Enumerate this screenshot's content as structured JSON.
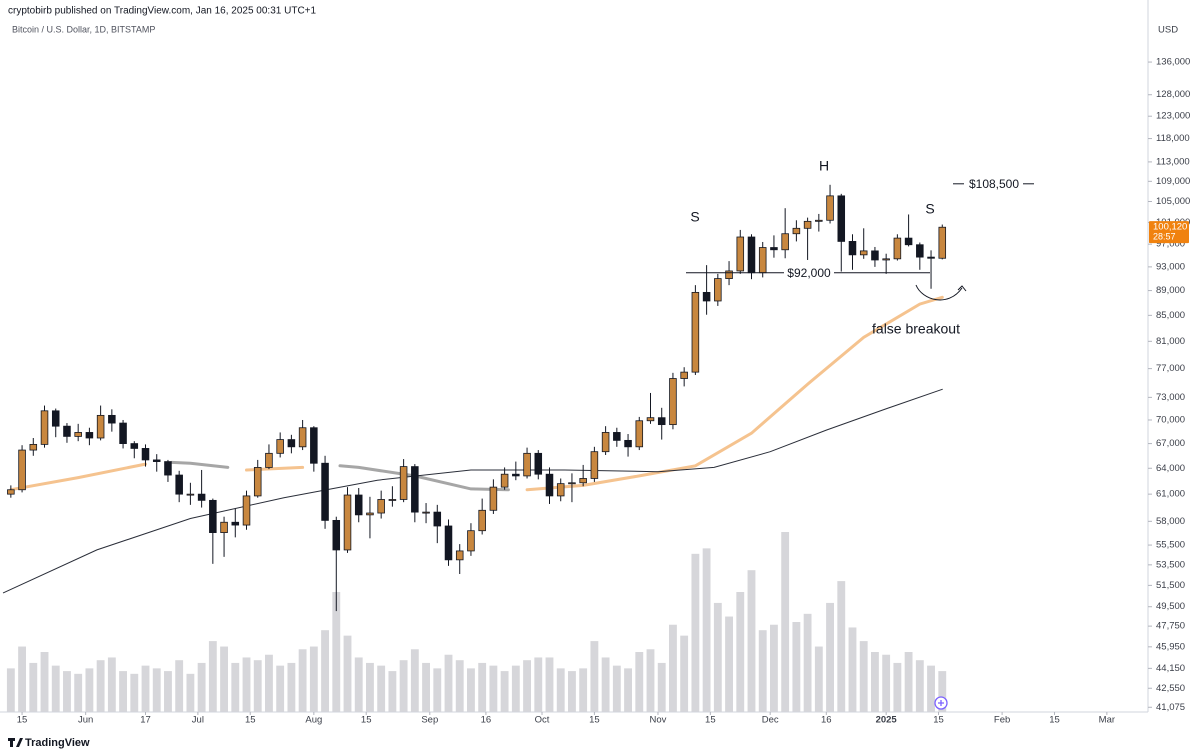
{
  "chart_data": {
    "type": "candlestick",
    "header": "cryptobirb published on TradingView.com, Jan 16, 2025 00:31 UTC+1",
    "title": "Bitcoin / U.S. Dollar, 1D, BITSTAMP",
    "currency": "USD",
    "brand": "TradingView",
    "log_scale": true,
    "grid": false,
    "up_color": "#c8873f",
    "down_color": "#131722",
    "volume_color": "#d6d6da",
    "xlim": [
      -5.9,
      301
    ],
    "ylim": [
      40490,
      152600
    ],
    "xticks": [
      {
        "value": 0,
        "label": "15"
      },
      {
        "value": 17,
        "label": "Jun"
      },
      {
        "value": 33,
        "label": "17"
      },
      {
        "value": 47,
        "label": "Jul"
      },
      {
        "value": 61,
        "label": "15"
      },
      {
        "value": 78,
        "label": "Aug"
      },
      {
        "value": 92,
        "label": "15"
      },
      {
        "value": 109,
        "label": "Sep"
      },
      {
        "value": 124,
        "label": "16"
      },
      {
        "value": 139,
        "label": "Oct"
      },
      {
        "value": 153,
        "label": "15"
      },
      {
        "value": 170,
        "label": "Nov"
      },
      {
        "value": 184,
        "label": "15"
      },
      {
        "value": 200,
        "label": "Dec"
      },
      {
        "value": 215,
        "label": "16"
      },
      {
        "value": 231,
        "label": "2025"
      },
      {
        "value": 245,
        "label": "15"
      },
      {
        "value": 262,
        "label": "Feb"
      },
      {
        "value": 276,
        "label": "15"
      },
      {
        "value": 290,
        "label": "Mar"
      }
    ],
    "yticks": [
      {
        "value": 136000,
        "label": "136,000"
      },
      {
        "value": 128000,
        "label": "128,000"
      },
      {
        "value": 123000,
        "label": "123,000"
      },
      {
        "value": 118000,
        "label": "118,000"
      },
      {
        "value": 113000,
        "label": "113,000"
      },
      {
        "value": 109000,
        "label": "109,000"
      },
      {
        "value": 105000,
        "label": "105,000"
      },
      {
        "value": 101000,
        "label": "101,000"
      },
      {
        "value": 97000,
        "label": "97,000"
      },
      {
        "value": 93000,
        "label": "93,000"
      },
      {
        "value": 89000,
        "label": "89,000"
      },
      {
        "value": 85000,
        "label": "85,000"
      },
      {
        "value": 81000,
        "label": "81,000"
      },
      {
        "value": 77000,
        "label": "77,000"
      },
      {
        "value": 73000,
        "label": "73,000"
      },
      {
        "value": 70000,
        "label": "70,000"
      },
      {
        "value": 67000,
        "label": "67,000"
      },
      {
        "value": 64000,
        "label": "64,000"
      },
      {
        "value": 61000,
        "label": "61,000"
      },
      {
        "value": 58000,
        "label": "58,000"
      },
      {
        "value": 55500,
        "label": "55,500"
      },
      {
        "value": 53500,
        "label": "53,500"
      },
      {
        "value": 51500,
        "label": "51,500"
      },
      {
        "value": 49500,
        "label": "49,500"
      },
      {
        "value": 47750,
        "label": "47,750"
      },
      {
        "value": 45950,
        "label": "45,950"
      },
      {
        "value": 44150,
        "label": "44,150"
      },
      {
        "value": 42550,
        "label": "42,550"
      },
      {
        "value": 41075,
        "label": "41,075"
      }
    ],
    "x": [
      -3,
      0,
      3,
      6,
      9,
      12,
      15,
      18,
      21,
      24,
      27,
      30,
      33,
      36,
      39,
      42,
      45,
      48,
      51,
      54,
      57,
      60,
      63,
      66,
      69,
      72,
      75,
      78,
      81,
      84,
      87,
      90,
      93,
      96,
      99,
      102,
      105,
      108,
      111,
      114,
      117,
      120,
      123,
      126,
      129,
      132,
      135,
      138,
      141,
      144,
      147,
      150,
      153,
      156,
      159,
      162,
      165,
      168,
      171,
      174,
      177,
      180,
      183,
      186,
      189,
      192,
      195,
      198,
      201,
      204,
      207,
      210,
      213,
      216,
      219,
      222,
      225,
      228,
      231,
      234,
      237,
      240,
      243,
      246
    ],
    "open": [
      61000,
      61500,
      66200,
      66900,
      71200,
      69200,
      67900,
      68400,
      67700,
      70600,
      69600,
      67000,
      66400,
      65000,
      64800,
      63200,
      61000,
      61000,
      60300,
      56800,
      57900,
      57600,
      60800,
      64100,
      65800,
      67500,
      66600,
      69000,
      64600,
      58100,
      55000,
      60900,
      58700,
      58900,
      60400,
      60400,
      64200,
      59000,
      59000,
      57500,
      54000,
      54900,
      57000,
      59200,
      61800,
      63300,
      63100,
      65800,
      63300,
      60800,
      62200,
      62300,
      62800,
      66000,
      68400,
      67400,
      66600,
      69900,
      70300,
      69400,
      75600,
      76500,
      88700,
      87300,
      91000,
      92300,
      98300,
      92000,
      96400,
      96000,
      98900,
      99900,
      101200,
      101400,
      106100,
      97500,
      95100,
      95800,
      94200,
      94400,
      98100,
      96900,
      94700,
      94500
    ],
    "high": [
      62000,
      66800,
      67700,
      71900,
      71500,
      69600,
      69500,
      69000,
      71900,
      71400,
      70000,
      67300,
      66900,
      65700,
      65000,
      63700,
      62300,
      63800,
      60500,
      58500,
      59400,
      61400,
      65000,
      66900,
      68400,
      68100,
      70000,
      69200,
      65500,
      58500,
      61800,
      61700,
      60700,
      61400,
      61900,
      65100,
      64500,
      60000,
      59800,
      58200,
      55600,
      57800,
      60500,
      62700,
      64100,
      64800,
      66500,
      66200,
      64100,
      62800,
      63400,
      64400,
      66600,
      69200,
      69000,
      68200,
      70400,
      73600,
      71600,
      76400,
      77200,
      89900,
      93300,
      91800,
      94000,
      99600,
      98800,
      97400,
      98600,
      103700,
      101400,
      101900,
      102600,
      108300,
      106500,
      98800,
      99900,
      96500,
      95300,
      98800,
      102500,
      97300,
      95900,
      100600
    ],
    "low": [
      60600,
      61200,
      65500,
      66500,
      67800,
      67100,
      67300,
      66800,
      67400,
      68500,
      66400,
      65200,
      64200,
      63600,
      62400,
      60100,
      59800,
      59500,
      53600,
      54300,
      56300,
      57100,
      60600,
      63900,
      65300,
      65800,
      66200,
      63600,
      57200,
      49100,
      54700,
      57900,
      56200,
      58300,
      59600,
      60100,
      57900,
      57800,
      55700,
      53400,
      52600,
      54400,
      56600,
      58800,
      61500,
      62600,
      62800,
      62700,
      59900,
      60200,
      60100,
      61900,
      62400,
      65600,
      66600,
      65400,
      66200,
      69500,
      67500,
      68800,
      74500,
      76100,
      85100,
      86500,
      89900,
      91800,
      90900,
      91200,
      94600,
      94500,
      97500,
      94200,
      99300,
      100800,
      92200,
      92500,
      94400,
      93000,
      91800,
      94100,
      96600,
      92500,
      89300,
      94300
    ],
    "close": [
      61500,
      66200,
      66900,
      71200,
      69200,
      67900,
      68400,
      67700,
      70600,
      69600,
      67000,
      66400,
      65000,
      64800,
      63200,
      61000,
      61000,
      60300,
      56800,
      57900,
      57600,
      60800,
      64100,
      65800,
      67500,
      66600,
      69000,
      64600,
      58100,
      55000,
      60900,
      58700,
      58900,
      60400,
      60400,
      64200,
      59000,
      59000,
      57500,
      54000,
      54900,
      57000,
      59200,
      61800,
      63300,
      63100,
      65800,
      63300,
      60800,
      62200,
      62300,
      62800,
      66000,
      68400,
      67400,
      66600,
      69900,
      70300,
      69400,
      75600,
      76500,
      88700,
      87300,
      91000,
      92300,
      98300,
      92000,
      96400,
      96000,
      98900,
      99900,
      101200,
      101400,
      106100,
      97500,
      95100,
      95800,
      94200,
      94400,
      98100,
      96900,
      94700,
      94500,
      100100
    ],
    "volume": [
      1600,
      2400,
      1800,
      2200,
      1700,
      1500,
      1400,
      1600,
      1900,
      2000,
      1500,
      1400,
      1700,
      1600,
      1500,
      1900,
      1400,
      1800,
      2600,
      2400,
      1800,
      2000,
      1900,
      2100,
      1700,
      1800,
      2300,
      2400,
      3000,
      4400,
      2800,
      2000,
      1800,
      1700,
      1500,
      1900,
      2300,
      1800,
      1600,
      2100,
      1900,
      1600,
      1800,
      1700,
      1500,
      1700,
      1900,
      2000,
      2000,
      1600,
      1500,
      1600,
      2600,
      2000,
      1700,
      1600,
      2200,
      2300,
      1800,
      3200,
      2800,
      5800,
      6000,
      4000,
      3500,
      4400,
      5200,
      3000,
      3200,
      6600,
      3300,
      3600,
      2400,
      4000,
      4800,
      3100,
      2600,
      2200,
      2100,
      1800,
      2200,
      1900,
      1700,
      1500
    ],
    "moving_averages": [
      {
        "color": "#f5c38f",
        "x": [
          -3,
          15,
          33,
          40,
          45,
          55,
          60,
          75,
          85,
          90,
          105,
          120,
          130,
          135,
          150,
          165,
          180,
          195,
          210,
          225,
          240,
          246
        ],
        "values": [
          61500,
          62900,
          64500,
          null,
          null,
          null,
          63800,
          64100,
          null,
          null,
          null,
          null,
          null,
          61500,
          62000,
          63100,
          64300,
          68300,
          74800,
          81600,
          86800,
          87900
        ]
      },
      {
        "color": "#a6a6a6",
        "x": [
          -3,
          15,
          33,
          40,
          45,
          55,
          60,
          75,
          85,
          90,
          105,
          120,
          130,
          135,
          150,
          165,
          180,
          195,
          210,
          225,
          240,
          246
        ],
        "values": [
          null,
          null,
          null,
          64700,
          64600,
          64100,
          null,
          null,
          64300,
          64100,
          63100,
          61600,
          61500,
          null,
          null,
          null,
          null,
          null,
          null,
          null,
          null,
          null
        ]
      },
      {
        "color": "#2a2e39",
        "x": [
          -5,
          20,
          45,
          70,
          95,
          120,
          145,
          170,
          185,
          200,
          215,
          230,
          246
        ],
        "values": [
          50800,
          55000,
          58300,
          60600,
          62600,
          63800,
          63800,
          63600,
          64100,
          66000,
          68700,
          71300,
          74100
        ]
      }
    ],
    "levels": [
      {
        "value": 92000,
        "label": "$92,000"
      },
      {
        "value": 108500,
        "label": "$108,500"
      }
    ],
    "annotations": [
      {
        "text": "S"
      },
      {
        "text": "H"
      },
      {
        "text": "S"
      },
      {
        "text": "false breakout"
      }
    ],
    "last_price": {
      "value": 100120,
      "label": "100,120"
    },
    "countdown": "28:57"
  }
}
